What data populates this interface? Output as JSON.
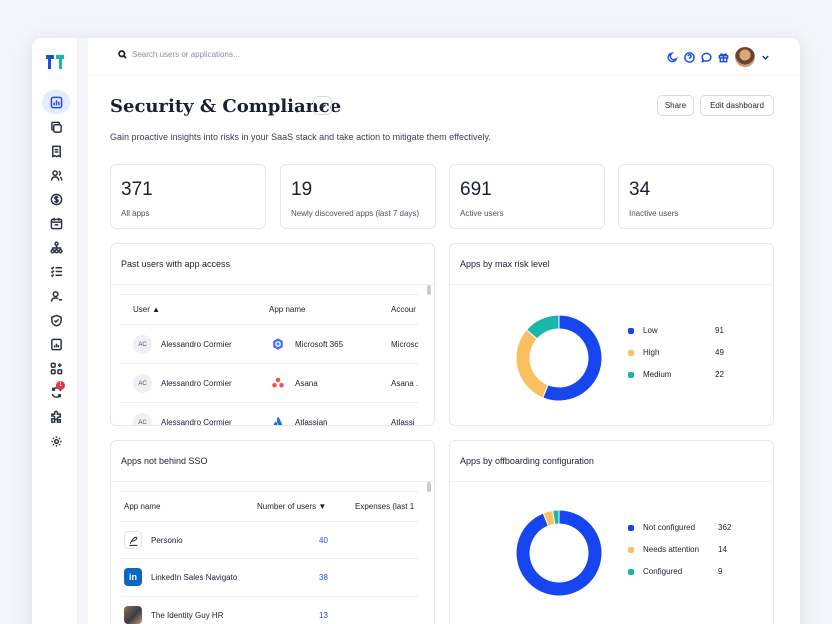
{
  "colors": {
    "accent": "#1f4ed8",
    "blue": "#1746f0",
    "orange": "#fbbf5f",
    "teal": "#19b7a8",
    "badge": "#e0344a"
  },
  "sidebar": {
    "icons": [
      "dashboard-icon",
      "copy-icon",
      "receipt-icon",
      "users-icon",
      "dollar-icon",
      "calendar-icon",
      "org-chart-icon",
      "checklist-icon",
      "user-minus-icon",
      "shield-icon",
      "report-icon",
      "apps-add-icon",
      "sync-icon",
      "plugin-icon",
      "settings-icon"
    ],
    "badge_count": "1"
  },
  "search": {
    "placeholder": "Search users or applications..."
  },
  "header": {
    "title": "Security & Compliance",
    "share_label": "Share",
    "edit_label": "Edit dashboard"
  },
  "subtitle": "Gain proactive insights into risks in your SaaS stack and take action to mitigate them effectively.",
  "stats": [
    {
      "value": "371",
      "label": "All apps"
    },
    {
      "value": "19",
      "label": "Newly discovered apps (last 7 days)"
    },
    {
      "value": "691",
      "label": "Active users"
    },
    {
      "value": "34",
      "label": "Inactive users"
    }
  ],
  "past_users": {
    "title": "Past users with app access",
    "columns": [
      "User ▲",
      "App name",
      "Accour"
    ],
    "rows": [
      {
        "initials": "AC",
        "user": "Alessandro Cormier",
        "app": "Microsoft 365",
        "account": "Microsc"
      },
      {
        "initials": "AC",
        "user": "Alessandro Cormier",
        "app": "Asana",
        "account": "Asana ."
      },
      {
        "initials": "AC",
        "user": "Alessandro Cormier",
        "app": "Atlassian",
        "account": "Atlassi"
      }
    ]
  },
  "risk": {
    "title": "Apps by max risk level",
    "legend": [
      {
        "label": "Low",
        "value": "91"
      },
      {
        "label": "High",
        "value": "49"
      },
      {
        "label": "Medium",
        "value": "22"
      }
    ]
  },
  "sso": {
    "title": "Apps not behind SSO",
    "columns": [
      "App name",
      "Number of users ▼",
      "Expenses (last 1"
    ],
    "rows": [
      {
        "app": "Personio",
        "users": "40"
      },
      {
        "app": "LinkedIn Sales Navigato",
        "users": "38"
      },
      {
        "app": "The Identity Guy HR",
        "users": "13"
      }
    ]
  },
  "offboarding": {
    "title": "Apps by offboarding configuration",
    "legend": [
      {
        "label": "Not configured",
        "value": "362"
      },
      {
        "label": "Needs attention",
        "value": "14"
      },
      {
        "label": "Configured",
        "value": "9"
      }
    ]
  },
  "chart_data": [
    {
      "type": "pie",
      "categories": [
        "Low",
        "High",
        "Medium"
      ],
      "values": [
        91,
        49,
        22
      ]
    },
    {
      "type": "pie",
      "categories": [
        "Not configured",
        "Needs attention",
        "Configured"
      ],
      "values": [
        362,
        14,
        9
      ]
    }
  ]
}
